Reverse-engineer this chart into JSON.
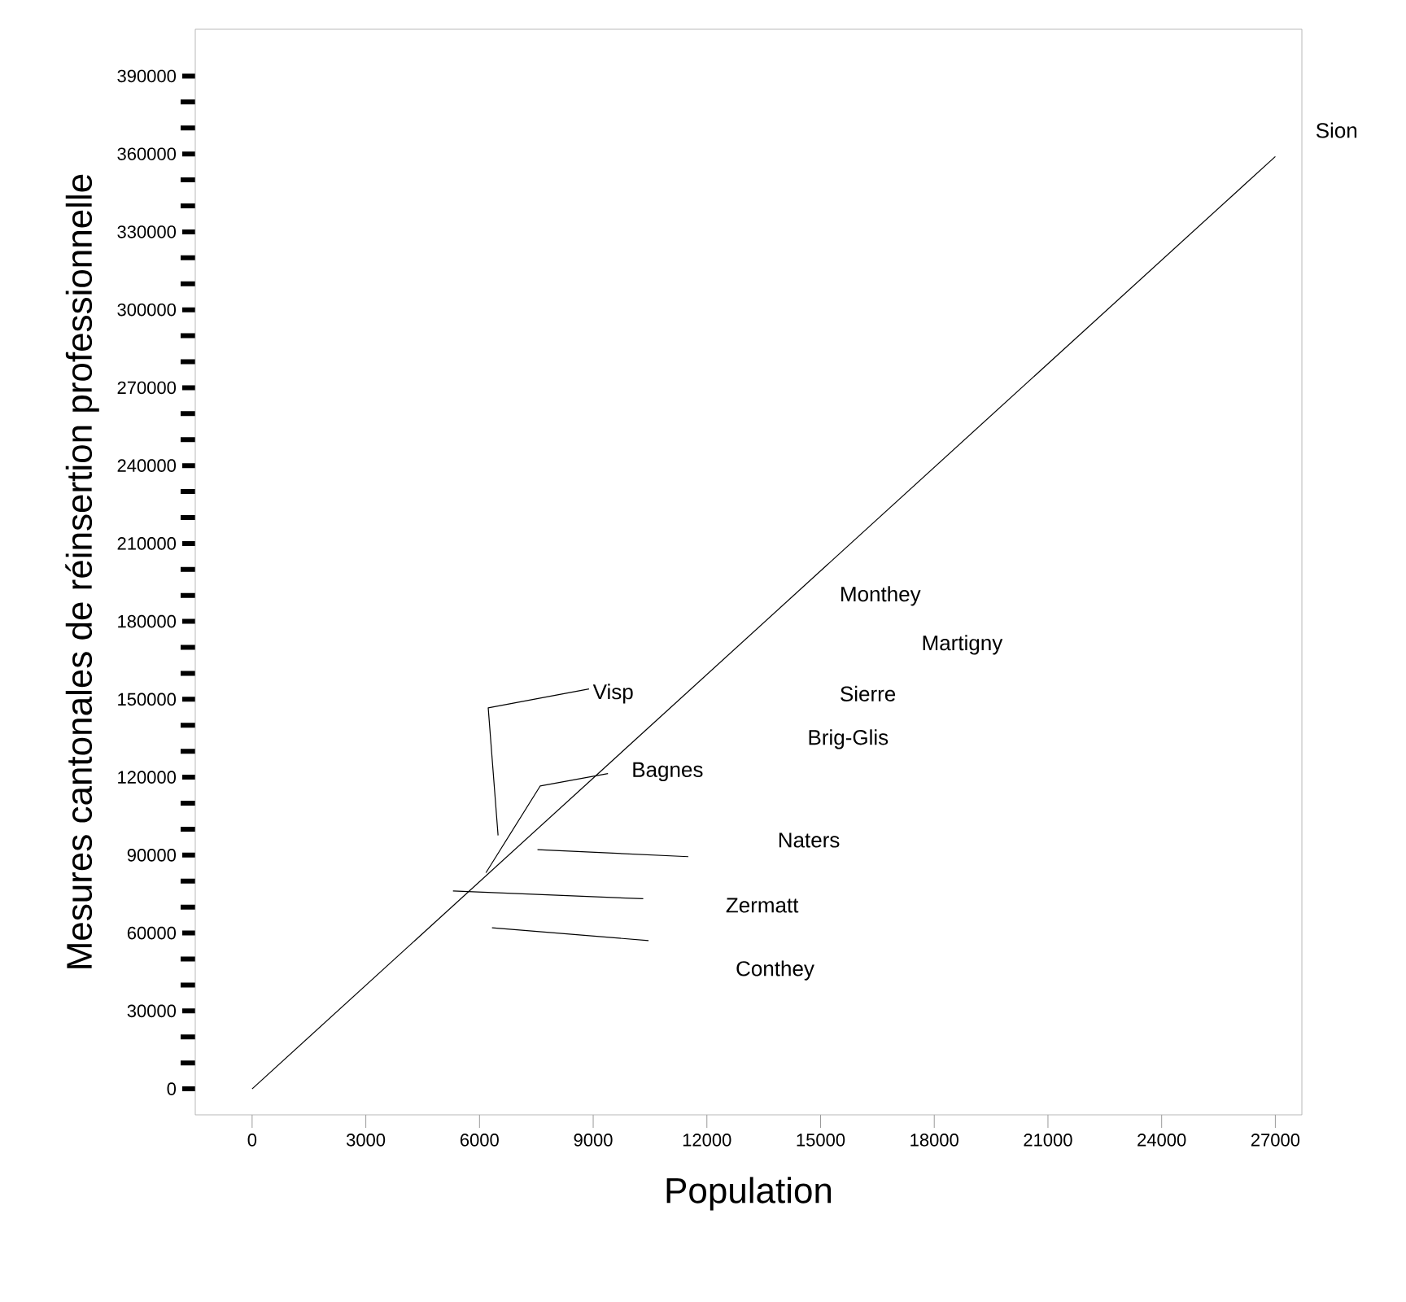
{
  "chart_data": {
    "type": "line",
    "xlabel": "Population",
    "ylabel": "Mesures cantonales de réinsertion professionnelle",
    "xlim": [
      -1500,
      27700
    ],
    "ylim": [
      -10000,
      408000
    ],
    "xticks": [
      0,
      3000,
      6000,
      9000,
      12000,
      15000,
      18000,
      21000,
      24000,
      27000
    ],
    "yticks": [
      0,
      30000,
      60000,
      90000,
      120000,
      150000,
      180000,
      210000,
      240000,
      270000,
      300000,
      330000,
      360000,
      390000
    ],
    "grid": false,
    "marker": "none",
    "line_style": "solid",
    "series": [
      {
        "color": "#000000",
        "x": [
          0,
          27000
        ],
        "values": [
          0,
          359000
        ]
      },
      {
        "color": "#000000",
        "x": [
          8890,
          6230,
          6490
        ],
        "values": [
          154000,
          146700,
          97600
        ]
      },
      {
        "color": "#000000",
        "x": [
          9390,
          7600,
          6170
        ],
        "values": [
          121400,
          116600,
          83200
        ]
      },
      {
        "color": "#000000",
        "x": [
          7530,
          11510
        ],
        "values": [
          92100,
          89400
        ]
      },
      {
        "color": "#000000",
        "x": [
          5300,
          10320
        ],
        "values": [
          76200,
          73200
        ]
      },
      {
        "color": "#000000",
        "x": [
          6330,
          10460
        ],
        "values": [
          62000,
          57100
        ]
      }
    ],
    "annotations": [
      "Sion",
      "Monthey",
      "Martigny",
      "Sierre",
      "Brig-Glis",
      "Visp",
      "Bagnes",
      "Naters",
      "Zermatt",
      "Conthey"
    ]
  }
}
